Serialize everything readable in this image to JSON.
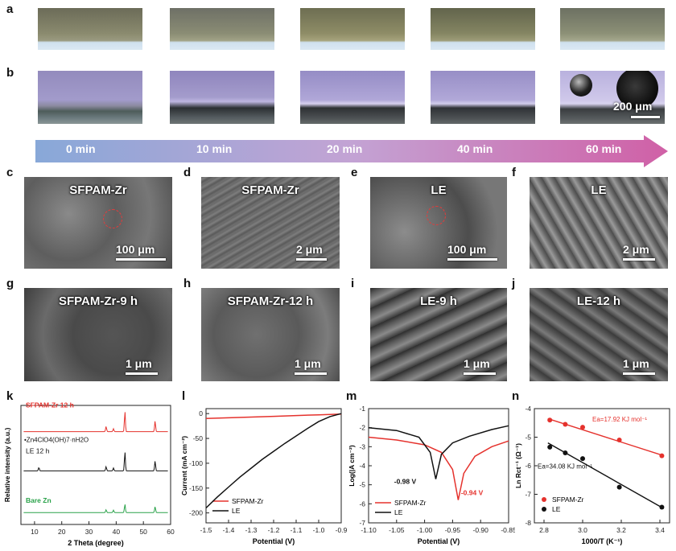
{
  "labels": {
    "a": "a",
    "b": "b",
    "c": "c",
    "d": "d",
    "e": "e",
    "f": "f",
    "g": "g",
    "h": "h",
    "i": "i",
    "j": "j",
    "k": "k",
    "l": "l",
    "m": "m",
    "n": "n"
  },
  "timeline": [
    "0 min",
    "10 min",
    "20 min",
    "40 min",
    "60 min"
  ],
  "row_b_scale": "200 μm",
  "micrographs": [
    {
      "title": "SFPAM-Zr",
      "scale": "100 μm"
    },
    {
      "title": "SFPAM-Zr",
      "scale": "2 μm"
    },
    {
      "title": "LE",
      "scale": "100 μm"
    },
    {
      "title": "LE",
      "scale": "2 μm"
    },
    {
      "title": "SFPAM-Zr-9 h",
      "scale": "1 μm"
    },
    {
      "title": "SFPAM-Zr-12 h",
      "scale": "1 μm"
    },
    {
      "title": "LE-9 h",
      "scale": "1 μm"
    },
    {
      "title": "LE-12 h",
      "scale": "1 μm"
    }
  ],
  "colors": {
    "red": "#e5322d",
    "black": "#111111",
    "green": "#2aa24a"
  },
  "chart_data": [
    {
      "type": "line",
      "panel": "k",
      "xlabel": "2 Theta (degree)",
      "ylabel": "Relative intensity (a.u.)",
      "xlim": [
        5,
        60
      ],
      "xticks": [
        10,
        20,
        30,
        40,
        50,
        60
      ],
      "series": [
        {
          "name": "SFPAM-Zr 12 h",
          "color": "#e5322d",
          "baseline": 0.78,
          "peaks": [
            [
              36.3,
              0.22
            ],
            [
              39.0,
              0.12
            ],
            [
              43.2,
              0.85
            ],
            [
              54.3,
              0.45
            ]
          ]
        },
        {
          "name": "LE 12 h",
          "color": "#111111",
          "baseline": 0.45,
          "peaks": [
            [
              11.6,
              0.15
            ],
            [
              36.3,
              0.18
            ],
            [
              39.0,
              0.12
            ],
            [
              43.2,
              0.8
            ],
            [
              54.3,
              0.42
            ]
          ]
        },
        {
          "name": "Bare Zn",
          "color": "#2aa24a",
          "baseline": 0.1,
          "peaks": [
            [
              36.3,
              0.12
            ],
            [
              39.0,
              0.1
            ],
            [
              43.2,
              0.35
            ],
            [
              54.3,
              0.25
            ]
          ]
        }
      ],
      "annotation": "Zn4ClO4(OH)7·nH2O"
    },
    {
      "type": "line",
      "panel": "l",
      "xlabel": "Potential (V)",
      "ylabel": "Current (mA cm⁻²)",
      "xlim": [
        -1.5,
        -0.9
      ],
      "ylim": [
        -220,
        10
      ],
      "xticks": [
        -1.5,
        -1.4,
        -1.3,
        -1.2,
        -1.1,
        -1.0,
        -0.9
      ],
      "yticks": [
        0,
        -50,
        -100,
        -150,
        -200
      ],
      "series": [
        {
          "name": "SFPAM-Zr",
          "color": "#e5322d",
          "x": [
            -1.5,
            -1.4,
            -1.3,
            -1.2,
            -1.1,
            -1.0,
            -0.9
          ],
          "y": [
            -10,
            -8.5,
            -7,
            -5.5,
            -4,
            -2.5,
            -1
          ]
        },
        {
          "name": "LE",
          "color": "#111111",
          "x": [
            -1.5,
            -1.45,
            -1.4,
            -1.35,
            -1.3,
            -1.25,
            -1.2,
            -1.15,
            -1.1,
            -1.05,
            -1.0,
            -0.95,
            -0.9
          ],
          "y": [
            -190,
            -168,
            -148,
            -128,
            -110,
            -92,
            -76,
            -60,
            -45,
            -30,
            -16,
            -6,
            0
          ]
        }
      ]
    },
    {
      "type": "line",
      "panel": "m",
      "xlabel": "Potential (V)",
      "ylabel": "Log(|A cm⁻²)",
      "xlim": [
        -1.1,
        -0.85
      ],
      "ylim": [
        -7,
        -1
      ],
      "xticks": [
        -1.1,
        -1.05,
        -1.0,
        -0.95,
        -0.9,
        -0.85
      ],
      "yticks": [
        -1,
        -2,
        -3,
        -4,
        -5,
        -6,
        -7
      ],
      "series": [
        {
          "name": "SFPAM-Zr",
          "color": "#e5322d",
          "x": [
            -1.1,
            -1.05,
            -1.0,
            -0.97,
            -0.95,
            -0.94,
            -0.93,
            -0.91,
            -0.88,
            -0.85
          ],
          "y": [
            -2.5,
            -2.65,
            -2.9,
            -3.3,
            -4.2,
            -5.8,
            -4.4,
            -3.5,
            -3.0,
            -2.7
          ]
        },
        {
          "name": "LE",
          "color": "#111111",
          "x": [
            -1.1,
            -1.05,
            -1.01,
            -0.99,
            -0.98,
            -0.97,
            -0.95,
            -0.92,
            -0.88,
            -0.85
          ],
          "y": [
            -2.0,
            -2.15,
            -2.5,
            -3.3,
            -4.7,
            -3.4,
            -2.8,
            -2.45,
            -2.1,
            -1.9
          ]
        }
      ],
      "annotations": [
        "-0.98 V",
        "-0.94 V"
      ]
    },
    {
      "type": "scatter",
      "panel": "n",
      "xlabel": "1000/T (K⁻¹)",
      "ylabel": "Ln Rct⁻¹ (Ω⁻¹)",
      "xlim": [
        2.75,
        3.45
      ],
      "ylim": [
        -8,
        -4
      ],
      "xticks": [
        2.8,
        3.0,
        3.2,
        3.4
      ],
      "yticks": [
        -4,
        -5,
        -6,
        -7,
        -8
      ],
      "series": [
        {
          "name": "SFPAM-Zr",
          "color": "#e5322d",
          "x": [
            2.83,
            2.91,
            3.0,
            3.19,
            3.41
          ],
          "y": [
            -4.4,
            -4.55,
            -4.65,
            -5.1,
            -5.65
          ],
          "fit": [
            [
              2.82,
              -4.35
            ],
            [
              3.42,
              -5.65
            ]
          ]
        },
        {
          "name": "LE",
          "color": "#111111",
          "x": [
            2.83,
            2.91,
            3.0,
            3.19,
            3.41
          ],
          "y": [
            -5.35,
            -5.55,
            -5.75,
            -6.75,
            -7.45
          ],
          "fit": [
            [
              2.82,
              -5.2
            ],
            [
              3.42,
              -7.5
            ]
          ]
        }
      ],
      "annotations": [
        "Ea=17.92 KJ mol⁻¹",
        "Ea=34.08 KJ mol⁻¹"
      ]
    }
  ]
}
